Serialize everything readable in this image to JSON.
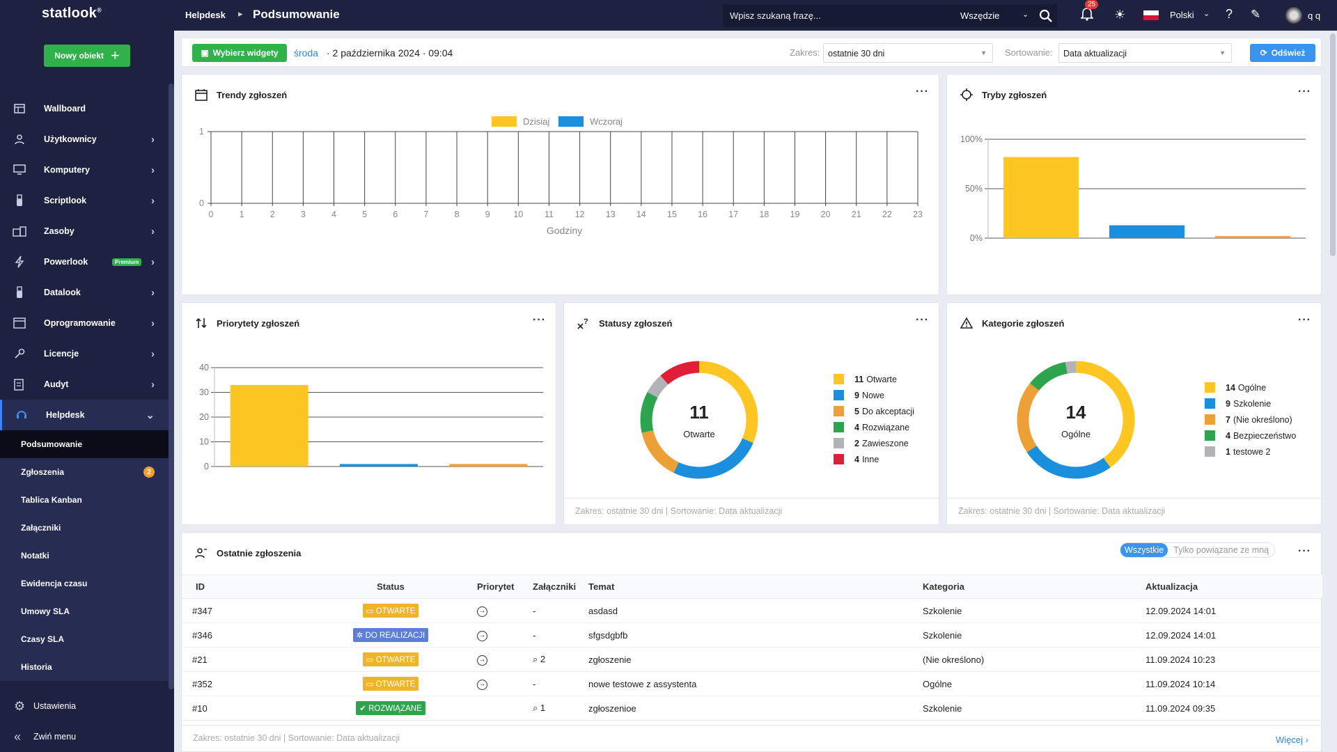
{
  "app": {
    "logo": "statlook",
    "logo_mark": "®"
  },
  "sidebar": {
    "new_button": "Nowy obiekt",
    "items": [
      {
        "label": "Wallboard",
        "icon": "wallboard-icon"
      },
      {
        "label": "Użytkownicy",
        "icon": "user-icon"
      },
      {
        "label": "Komputery",
        "icon": "monitor-icon"
      },
      {
        "label": "Scriptlook",
        "icon": "usb-icon"
      },
      {
        "label": "Zasoby",
        "icon": "resources-icon"
      },
      {
        "label": "Powerlook",
        "icon": "lightning-icon",
        "badge": "Premium"
      },
      {
        "label": "Datalook",
        "icon": "usb-icon"
      },
      {
        "label": "Oprogramowanie",
        "icon": "window-icon"
      },
      {
        "label": "Licencje",
        "icon": "key-icon"
      },
      {
        "label": "Audyt",
        "icon": "audit-icon"
      },
      {
        "label": "Helpdesk",
        "icon": "headset-icon"
      }
    ],
    "subitems": [
      {
        "label": "Podsumowanie"
      },
      {
        "label": "Zgłoszenia",
        "badge": "2"
      },
      {
        "label": "Tablica Kanban"
      },
      {
        "label": "Załączniki"
      },
      {
        "label": "Notatki"
      },
      {
        "label": "Ewidencja czasu"
      },
      {
        "label": "Umowy SLA"
      },
      {
        "label": "Czasy SLA"
      },
      {
        "label": "Historia"
      }
    ],
    "settings": "Ustawienia",
    "collapse": "Zwiń menu"
  },
  "topbar": {
    "breadcrumb_1": "Helpdesk",
    "breadcrumb_2": "Podsumowanie",
    "search_placeholder": "Wpisz szukaną frazę...",
    "search_scope": "Wszędzie",
    "notifications": "25",
    "language": "Polski",
    "user": "q q"
  },
  "controls": {
    "widgets_button": "Wybierz widgety",
    "date_day": "środa",
    "date_rest": "· 2 października 2024 · 09:04",
    "range_label": "Zakres:",
    "range_value": "ostatnie 30 dni",
    "sort_label": "Sortowanie:",
    "sort_value": "Data aktualizacji",
    "refresh_button": "Odśwież"
  },
  "widgets": {
    "trends_title": "Trendy zgłoszeń",
    "modes_title": "Tryby zgłoszeń",
    "priorities_title": "Priorytety zgłoszeń",
    "statuses_title": "Statusy zgłoszeń",
    "categories_title": "Kategorie zgłoszeń",
    "footer": "Zakres: ostatnie 30 dni | Sortowanie: Data aktualizacji"
  },
  "statuses": {
    "center_value": "11",
    "center_label": "Otwarte",
    "legend": [
      {
        "count": "11",
        "label": "Otwarte",
        "color": "#fdc623"
      },
      {
        "count": "9",
        "label": "Nowe",
        "color": "#1a8fdd"
      },
      {
        "count": "5",
        "label": "Do akceptacji",
        "color": "#eda036"
      },
      {
        "count": "4",
        "label": "Rozwiązane",
        "color": "#2fa44f"
      },
      {
        "count": "2",
        "label": "Zawieszone",
        "color": "#b1b3b7"
      },
      {
        "count": "4",
        "label": "Inne",
        "color": "#e01e37"
      }
    ]
  },
  "categories": {
    "center_value": "14",
    "center_label": "Ogólne",
    "legend": [
      {
        "count": "14",
        "label": "Ogólne",
        "color": "#fdc623"
      },
      {
        "count": "9",
        "label": "Szkolenie",
        "color": "#1a8fdd"
      },
      {
        "count": "7",
        "label": "(Nie określono)",
        "color": "#eda036"
      },
      {
        "count": "4",
        "label": "Bezpieczeństwo",
        "color": "#2fa44f"
      },
      {
        "count": "1",
        "label": "testowe 2",
        "color": "#b1b3b7"
      }
    ]
  },
  "recent": {
    "title": "Ostatnie zgłoszenia",
    "toggle_all": "Wszystkie",
    "toggle_mine": "Tylko powiązane ze mną",
    "columns": [
      "ID",
      "Status",
      "Priorytet",
      "Załączniki",
      "Temat",
      "Kategoria",
      "Aktualizacja"
    ],
    "rows": [
      {
        "id": "#347",
        "status": "OTWARTE",
        "status_color": "#f0b429",
        "priority": "→",
        "attach": "-",
        "topic": "asdasd",
        "category": "Szkolenie",
        "updated": "12.09.2024 14:01"
      },
      {
        "id": "#346",
        "status": "DO REALIZACJI",
        "status_color": "#5b7fd6",
        "priority": "→",
        "attach": "-",
        "topic": "sfgsdgbfb",
        "category": "Szkolenie",
        "updated": "12.09.2024 14:01"
      },
      {
        "id": "#21",
        "status": "OTWARTE",
        "status_color": "#f0b429",
        "priority": "→",
        "attach": "2",
        "topic": "zgłoszenie",
        "category": "(Nie określono)",
        "updated": "11.09.2024 10:23"
      },
      {
        "id": "#352",
        "status": "OTWARTE",
        "status_color": "#f0b429",
        "priority": "→",
        "attach": "-",
        "topic": "nowe testowe z assystenta",
        "category": "Ogólne",
        "updated": "11.09.2024 10:14"
      },
      {
        "id": "#10",
        "status": "ROZWIĄZANE",
        "status_color": "#2fa44f",
        "priority": "",
        "attach": "1",
        "topic": "zgłoszenioe",
        "category": "Szkolenie",
        "updated": "11.09.2024 09:35"
      }
    ],
    "footer": "Zakres: ostatnie 30 dni | Sortowanie: Data aktualizacji",
    "more": "Więcej"
  },
  "chart_data": [
    {
      "type": "bar",
      "title": "Trendy zgłoszeń",
      "categories": [
        "0",
        "1",
        "2",
        "3",
        "4",
        "5",
        "6",
        "7",
        "8",
        "9",
        "10",
        "11",
        "12",
        "13",
        "14",
        "15",
        "16",
        "17",
        "18",
        "19",
        "20",
        "21",
        "22",
        "23"
      ],
      "series": [
        {
          "name": "Dzisiaj",
          "color": "#fdc623",
          "values": [
            0,
            0,
            0,
            0,
            0,
            0,
            0,
            0,
            0,
            0,
            0,
            0,
            0,
            0,
            0,
            0,
            0,
            0,
            0,
            0,
            0,
            0,
            0,
            0
          ]
        },
        {
          "name": "Wczoraj",
          "color": "#1a8fdd",
          "values": [
            0,
            0,
            0,
            0,
            0,
            0,
            0,
            0,
            0,
            0,
            0,
            0,
            0,
            0,
            0,
            0,
            0,
            0,
            0,
            0,
            0,
            0,
            0,
            0
          ]
        }
      ],
      "xlabel": "Godziny",
      "ylim": [
        0,
        1
      ],
      "yticks": [
        "0",
        "1"
      ],
      "grid": true,
      "legend": "top"
    },
    {
      "type": "bar",
      "title": "Tryby zgłoszeń",
      "categories": [
        "",
        "",
        ""
      ],
      "values": [
        82,
        13,
        2
      ],
      "colors": [
        "#fdc623",
        "#1a8fdd",
        "#eda036"
      ],
      "ylim": [
        0,
        100
      ],
      "yticks": [
        "0%",
        "50%",
        "100%"
      ]
    },
    {
      "type": "bar",
      "title": "Priorytety zgłoszeń",
      "categories": [
        "",
        "",
        ""
      ],
      "values": [
        33,
        1,
        1
      ],
      "colors": [
        "#fdc623",
        "#1a8fdd",
        "#eda036"
      ],
      "ylim": [
        0,
        40
      ],
      "yticks": [
        "0",
        "10",
        "20",
        "30",
        "40"
      ]
    },
    {
      "type": "pie",
      "title": "Statusy zgłoszeń",
      "labels": [
        "Otwarte",
        "Nowe",
        "Do akceptacji",
        "Rozwiązane",
        "Zawieszone",
        "Inne"
      ],
      "values": [
        11,
        9,
        5,
        4,
        2,
        4
      ],
      "colors": [
        "#fdc623",
        "#1a8fdd",
        "#eda036",
        "#2fa44f",
        "#b1b3b7",
        "#e01e37"
      ]
    },
    {
      "type": "pie",
      "title": "Kategorie zgłoszeń",
      "labels": [
        "Ogólne",
        "Szkolenie",
        "(Nie określono)",
        "Bezpieczeństwo",
        "testowe 2"
      ],
      "values": [
        14,
        9,
        7,
        4,
        1
      ],
      "colors": [
        "#fdc623",
        "#1a8fdd",
        "#eda036",
        "#2fa44f",
        "#b1b3b7"
      ]
    }
  ]
}
